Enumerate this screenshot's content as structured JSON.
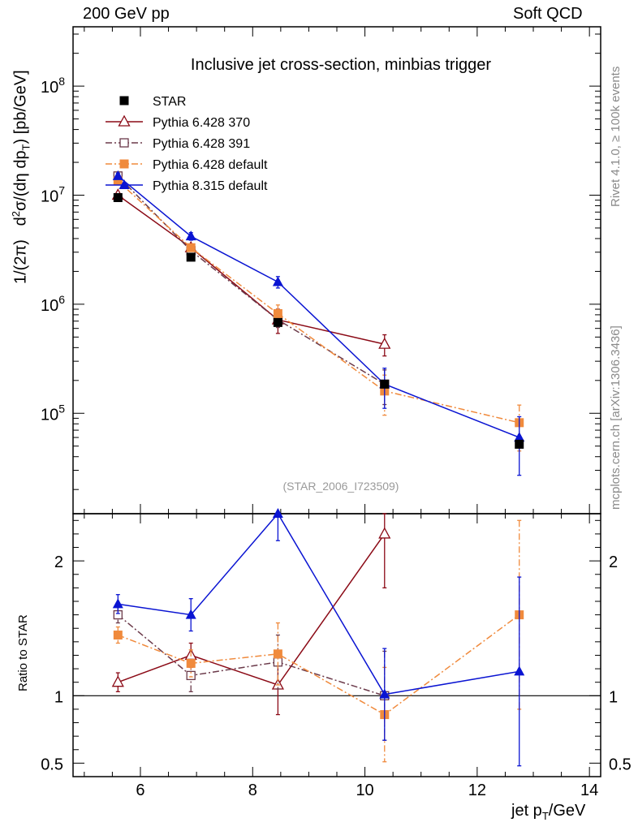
{
  "header": {
    "left": "200 GeV pp",
    "right": "Soft QCD"
  },
  "side_labels": {
    "rivet": "Rivet 4.1.0, ≥ 100k events",
    "mcplots": "mcplots.cern.ch [arXiv:1306.3436]"
  },
  "chart_data": {
    "type": "line",
    "title": "Inclusive jet cross-section, minbias trigger",
    "analysis_id": "(STAR_2006_I723509)",
    "xlabel": "jet p_T/GeV",
    "ylabel": "1/(2π)  d²σ/(dη dp_T) [pb/GeV]",
    "ratio_ylabel": "Ratio to STAR",
    "xlim": [
      4.8,
      14.2
    ],
    "ylim_log": [
      12000,
      350000000
    ],
    "ratio_ylim": [
      0.4,
      2.35
    ],
    "x_ticks": [
      "6",
      "8",
      "10",
      "12",
      "14"
    ],
    "y_ticks": [
      {
        "base": "10",
        "exp": "5",
        "value": 100000
      },
      {
        "base": "10",
        "exp": "6",
        "value": 1000000
      },
      {
        "base": "10",
        "exp": "7",
        "value": 10000000
      },
      {
        "base": "10",
        "exp": "8",
        "value": 100000000
      }
    ],
    "ratio_ticks": [
      {
        "label": "0.5",
        "value": 0.5
      },
      {
        "label": "1",
        "value": 1
      },
      {
        "label": "2",
        "value": 2
      }
    ],
    "legend": [
      {
        "name": "STAR"
      },
      {
        "name": "Pythia 6.428 370"
      },
      {
        "name": "Pythia 6.428 391"
      },
      {
        "name": "Pythia 6.428 default"
      },
      {
        "name": "Pythia 8.315 default"
      }
    ],
    "data": {
      "name": "STAR",
      "color": "#000000",
      "x": [
        5.6,
        6.9,
        8.45,
        10.35,
        12.75
      ],
      "y": [
        9500000,
        2700000,
        680000,
        185000,
        52000
      ]
    },
    "series": [
      {
        "name": "Pythia 6.428 370",
        "color": "#8b0a16",
        "marker": "open-triangle",
        "dash": "",
        "x": [
          5.6,
          6.9,
          8.45,
          10.35,
          12.75
        ],
        "y": [
          10000000,
          3300000,
          720000,
          430000,
          null
        ],
        "err": [
          0.06,
          0.06,
          0.25,
          0.22,
          0
        ],
        "ratio": [
          1.1,
          1.3,
          1.08,
          2.2,
          null
        ],
        "ratio_err": [
          0.07,
          0.09,
          0.22,
          0.4,
          0
        ]
      },
      {
        "name": "Pythia 6.428 391",
        "color": "#6b3a4a",
        "marker": "open-square",
        "dash": "8,3,2,3",
        "x": [
          5.6,
          6.9,
          8.45,
          10.35,
          12.75
        ],
        "y": [
          15000000,
          3100000,
          720000,
          185000,
          null
        ],
        "err": [
          0.05,
          0.06,
          0.15,
          0.35,
          0
        ],
        "ratio": [
          1.6,
          1.15,
          1.25,
          1.0,
          null
        ],
        "ratio_err": [
          0.06,
          0.12,
          0.2,
          0.33,
          0
        ]
      },
      {
        "name": "Pythia 6.428 default",
        "color": "#f08a3c",
        "marker": "square",
        "dash": "8,3,2,3",
        "x": [
          5.6,
          6.9,
          8.45,
          10.35,
          12.75
        ],
        "y": [
          13500000,
          3300000,
          820000,
          160000,
          82000
        ],
        "err": [
          0.05,
          0.06,
          0.2,
          0.4,
          0.45
        ],
        "ratio": [
          1.45,
          1.24,
          1.31,
          0.86,
          1.6
        ],
        "ratio_err": [
          0.06,
          0.1,
          0.23,
          0.35,
          0.7
        ]
      },
      {
        "name": "Pythia 8.315 default",
        "color": "#0a14d2",
        "marker": "triangle",
        "dash": "",
        "x": [
          5.6,
          6.9,
          8.45,
          10.35,
          12.75
        ],
        "y": [
          15000000,
          4200000,
          1600000,
          185000,
          60000
        ],
        "err": [
          0.06,
          0.08,
          0.12,
          0.4,
          0.55
        ],
        "ratio": [
          1.68,
          1.6,
          2.35,
          1.01,
          1.18
        ],
        "ratio_err": [
          0.07,
          0.12,
          0.2,
          0.34,
          0.7
        ]
      }
    ]
  }
}
